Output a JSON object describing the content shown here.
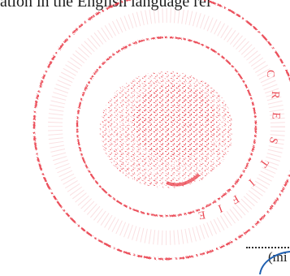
{
  "document": {
    "top_text": "ation in the English language rel",
    "stamp": {
      "color": "#e8333f",
      "ring_text_vertical": "CERTIFIE",
      "lettering": "CERTIFIED"
    },
    "bottom_fragment": "(mi"
  },
  "colors": {
    "text": "#1c1c1c",
    "stamp": "#e8333f",
    "signature": "#1f5fb0"
  }
}
